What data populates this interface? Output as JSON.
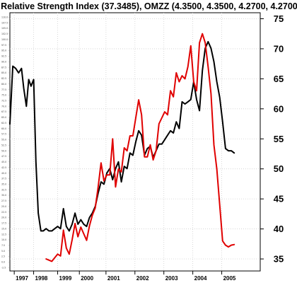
{
  "chart_data": {
    "type": "line",
    "title": "Relative Strength Index (37.3485), OMZZ (4.3500, 4.3500, 4.2700, 4.2700)",
    "x_axis": {
      "tick_labels": [
        "1997",
        "1998",
        "1999",
        "2000",
        "2001",
        "2002",
        "2003",
        "2004",
        "2005"
      ],
      "tick_positions": [
        1997.0,
        1997.67,
        1998.5,
        1999.25,
        2000.17,
        2001.17,
        2002.17,
        2003.17,
        2004.17
      ],
      "range": [
        1996.85,
        2005.5
      ]
    },
    "y_axis_right": {
      "ticks": [
        35,
        40,
        45,
        50,
        55,
        60,
        65,
        70,
        75
      ],
      "ylim": [
        33.0,
        76.0
      ]
    },
    "y_axis_left": {
      "ticks": [
        "-2.5",
        "0.0",
        "2.5",
        "5.0",
        "7.5",
        "10.0",
        "12.5",
        "15.0",
        "17.5",
        "20.0",
        "22.5",
        "25.0",
        "27.5",
        "30.0",
        "32.5",
        "35.0",
        "37.5",
        "40.0",
        "42.5",
        "45.0",
        "47.5",
        "50.0",
        "52.5",
        "55.0",
        "57.5",
        "60.0",
        "62.5",
        "65.0",
        "67.5",
        "70.0",
        "72.5",
        "75.0",
        "77.5",
        "80.0",
        "82.5",
        "85.0",
        "87.5",
        "90.0",
        "92.5",
        "95.0",
        "97.5",
        "100.0",
        "102.5",
        "105.0",
        "107.5",
        "110.0"
      ],
      "ylim": [
        -4.0,
        112.0
      ]
    },
    "grid": true,
    "legend": "none",
    "series": [
      {
        "axis": "left",
        "color": "#000000",
        "x": [
          1996.85,
          1996.95,
          1997.05,
          1997.15,
          1997.25,
          1997.33,
          1997.42,
          1997.5,
          1997.58,
          1997.67,
          1997.75,
          1997.83,
          1997.92,
          1998.0,
          1998.1,
          1998.2,
          1998.3,
          1998.4,
          1998.5,
          1998.6,
          1998.7,
          1998.8,
          1998.9,
          1999.0,
          1999.1,
          1999.2,
          1999.3,
          1999.4,
          1999.5,
          1999.6,
          1999.7,
          1999.8,
          1999.9,
          2000.0,
          2000.1,
          2000.2,
          2000.3,
          2000.4,
          2000.5,
          2000.6,
          2000.7,
          2000.8,
          2000.9,
          2001.0,
          2001.1,
          2001.2,
          2001.3,
          2001.4,
          2001.5,
          2001.6,
          2001.7,
          2001.8,
          2001.9,
          2002.0,
          2002.1,
          2002.2,
          2002.3,
          2002.4,
          2002.5,
          2002.6,
          2002.7,
          2002.8,
          2002.9,
          2003.0,
          2003.1,
          2003.2,
          2003.3,
          2003.4,
          2003.5,
          2003.6,
          2003.7,
          2003.8,
          2003.9,
          2004.0,
          2004.1,
          2004.2,
          2004.3,
          2004.4,
          2004.5,
          2004.6
        ],
        "y": [
          62,
          88,
          87,
          85,
          87,
          78,
          70,
          82,
          79,
          82,
          45,
          22,
          14,
          14,
          15,
          14,
          14,
          15,
          16,
          15,
          24,
          16,
          14,
          17,
          22,
          17,
          19,
          17,
          16,
          20,
          22,
          25,
          31,
          36,
          35,
          40,
          42,
          37,
          42,
          45,
          36,
          43,
          42,
          49,
          48,
          54,
          59,
          57,
          48,
          51,
          52,
          47,
          50,
          53,
          53,
          55,
          57,
          59,
          58,
          63,
          60,
          72,
          71,
          72,
          73,
          81,
          73,
          68,
          86,
          96,
          99,
          96,
          90,
          81,
          74,
          63,
          51,
          50,
          50,
          49
        ]
      },
      {
        "axis": "right",
        "color": "#e00000",
        "x": [
          1998.1,
          1998.2,
          1998.3,
          1998.4,
          1998.5,
          1998.6,
          1998.7,
          1998.8,
          1998.9,
          1999.0,
          1999.1,
          1999.2,
          1999.3,
          1999.4,
          1999.5,
          1999.6,
          1999.7,
          1999.8,
          1999.9,
          2000.0,
          2000.1,
          2000.2,
          2000.3,
          2000.4,
          2000.5,
          2000.6,
          2000.7,
          2000.8,
          2000.9,
          2001.0,
          2001.1,
          2001.2,
          2001.3,
          2001.4,
          2001.5,
          2001.6,
          2001.7,
          2001.8,
          2001.9,
          2002.0,
          2002.1,
          2002.2,
          2002.3,
          2002.4,
          2002.5,
          2002.6,
          2002.7,
          2002.8,
          2002.9,
          2003.0,
          2003.1,
          2003.2,
          2003.3,
          2003.4,
          2003.5,
          2003.6,
          2003.7,
          2003.8,
          2003.9,
          2004.0,
          2004.1,
          2004.2,
          2004.3,
          2004.4,
          2004.5,
          2004.6
        ],
        "y": [
          35.0,
          34.8,
          34.6,
          35.2,
          35.8,
          35.5,
          39.8,
          36.8,
          35.8,
          38.2,
          40.9,
          38.7,
          40.3,
          39.2,
          38.1,
          40.5,
          42.3,
          43.5,
          47.0,
          51.0,
          48.0,
          49.0,
          49.0,
          55.0,
          47.0,
          50.0,
          49.5,
          53.5,
          53.0,
          55.5,
          55.5,
          58.5,
          61.5,
          59.0,
          52.0,
          52.0,
          54.0,
          51.5,
          53.0,
          57.5,
          58.5,
          59.5,
          59.0,
          63.0,
          62.0,
          66.0,
          64.5,
          65.5,
          65.0,
          67.0,
          70.5,
          64.5,
          63.0,
          71.0,
          72.5,
          71.0,
          67.0,
          62.5,
          54.0,
          50.0,
          44.0,
          38.0,
          37.3,
          37.0,
          37.3,
          37.4
        ]
      }
    ]
  }
}
